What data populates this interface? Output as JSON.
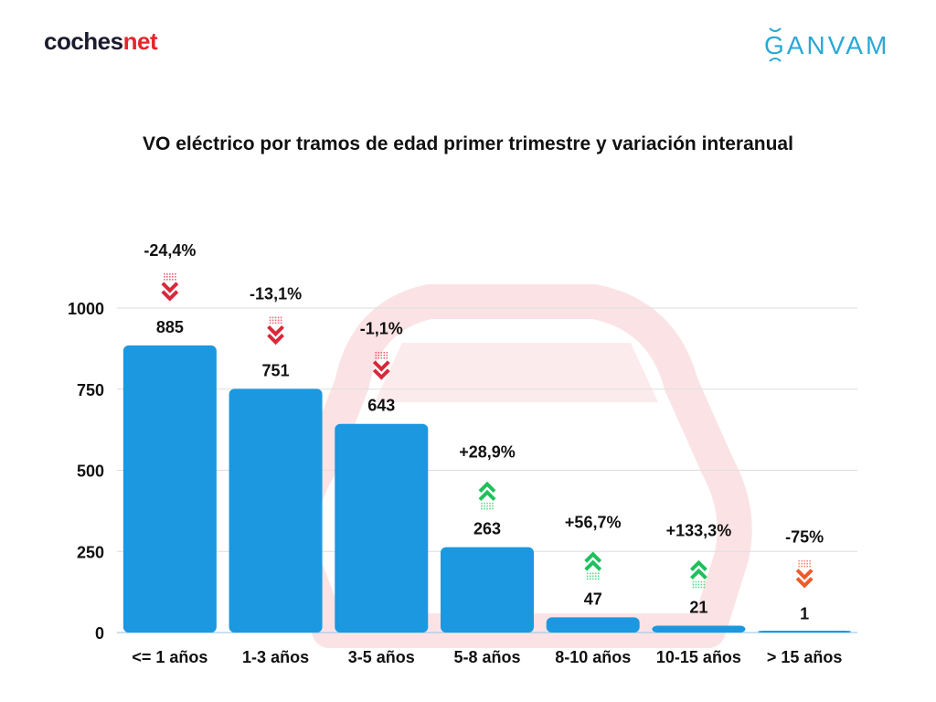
{
  "brand_left": {
    "main": "coches",
    "accent": "net"
  },
  "brand_right": {
    "text": "GANVAM"
  },
  "colors": {
    "bar": "#1b98e0",
    "grid": "#dedede",
    "axis": "#90c4e6",
    "down_arrow": "#d9283a",
    "up_arrow": "#20c05c",
    "down_arrow_last": "#ef5a2a",
    "watermark": "#fbe3e5"
  },
  "chart_data": {
    "type": "bar",
    "title": "VO eléctrico por tramos de edad primer trimestre y variación interanual",
    "xlabel": "",
    "ylabel": "",
    "ylim": [
      0,
      1000
    ],
    "yticks": [
      0,
      250,
      500,
      750,
      1000
    ],
    "grid": true,
    "categories": [
      "<= 1 años",
      "1-3 años",
      "3-5 años",
      "5-8 años",
      "8-10 años",
      "10-15 años",
      "> 15 años"
    ],
    "values": [
      885,
      751,
      643,
      263,
      47,
      21,
      1
    ],
    "variation_labels": [
      "-24,4%",
      "-13,1%",
      "-1,1%",
      "+28,9%",
      "+56,7%",
      "+133,3%",
      "-75%"
    ],
    "variation_direction": [
      "down",
      "down",
      "down",
      "up",
      "up",
      "up",
      "down"
    ]
  }
}
